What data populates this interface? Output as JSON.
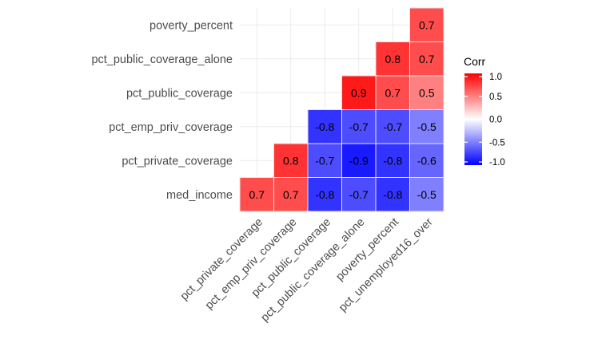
{
  "chart_data": {
    "type": "heatmap",
    "title": "",
    "xlabel": "",
    "ylabel": "",
    "x_categories": [
      "pct_private_coverage",
      "pct_emp_priv_coverage",
      "pct_public_coverage",
      "pct_public_coverage_alone",
      "poverty_percent",
      "pct_unemployed16_over"
    ],
    "y_categories": [
      "med_income",
      "pct_private_coverage",
      "pct_emp_priv_coverage",
      "pct_public_coverage",
      "pct_public_coverage_alone",
      "poverty_percent"
    ],
    "cells": [
      {
        "x": "pct_private_coverage",
        "y": "med_income",
        "value": 0.7
      },
      {
        "x": "pct_emp_priv_coverage",
        "y": "med_income",
        "value": 0.7
      },
      {
        "x": "pct_public_coverage",
        "y": "med_income",
        "value": -0.8
      },
      {
        "x": "pct_public_coverage_alone",
        "y": "med_income",
        "value": -0.7
      },
      {
        "x": "poverty_percent",
        "y": "med_income",
        "value": -0.8
      },
      {
        "x": "pct_unemployed16_over",
        "y": "med_income",
        "value": -0.5
      },
      {
        "x": "pct_emp_priv_coverage",
        "y": "pct_private_coverage",
        "value": 0.8
      },
      {
        "x": "pct_public_coverage",
        "y": "pct_private_coverage",
        "value": -0.7
      },
      {
        "x": "pct_public_coverage_alone",
        "y": "pct_private_coverage",
        "value": -0.9
      },
      {
        "x": "poverty_percent",
        "y": "pct_private_coverage",
        "value": -0.8
      },
      {
        "x": "pct_unemployed16_over",
        "y": "pct_private_coverage",
        "value": -0.6
      },
      {
        "x": "pct_public_coverage",
        "y": "pct_emp_priv_coverage",
        "value": -0.8
      },
      {
        "x": "pct_public_coverage_alone",
        "y": "pct_emp_priv_coverage",
        "value": -0.7
      },
      {
        "x": "poverty_percent",
        "y": "pct_emp_priv_coverage",
        "value": -0.7
      },
      {
        "x": "pct_unemployed16_over",
        "y": "pct_emp_priv_coverage",
        "value": -0.5
      },
      {
        "x": "pct_public_coverage_alone",
        "y": "pct_public_coverage",
        "value": 0.9
      },
      {
        "x": "poverty_percent",
        "y": "pct_public_coverage",
        "value": 0.7
      },
      {
        "x": "pct_unemployed16_over",
        "y": "pct_public_coverage",
        "value": 0.5
      },
      {
        "x": "poverty_percent",
        "y": "pct_public_coverage_alone",
        "value": 0.8
      },
      {
        "x": "pct_unemployed16_over",
        "y": "pct_public_coverage_alone",
        "value": 0.7
      },
      {
        "x": "pct_unemployed16_over",
        "y": "poverty_percent",
        "value": 0.7
      }
    ],
    "legend": {
      "title": "Corr",
      "placement": "right",
      "range": [
        -1.0,
        1.0
      ],
      "ticks": [
        "1.0",
        "0.5",
        "0.0",
        "-0.5",
        "-1.0"
      ]
    },
    "colors": {
      "low": "#0000ff",
      "mid": "#ffffff",
      "high": "#ff0000",
      "grid": "#ebebeb"
    },
    "grid": true
  }
}
